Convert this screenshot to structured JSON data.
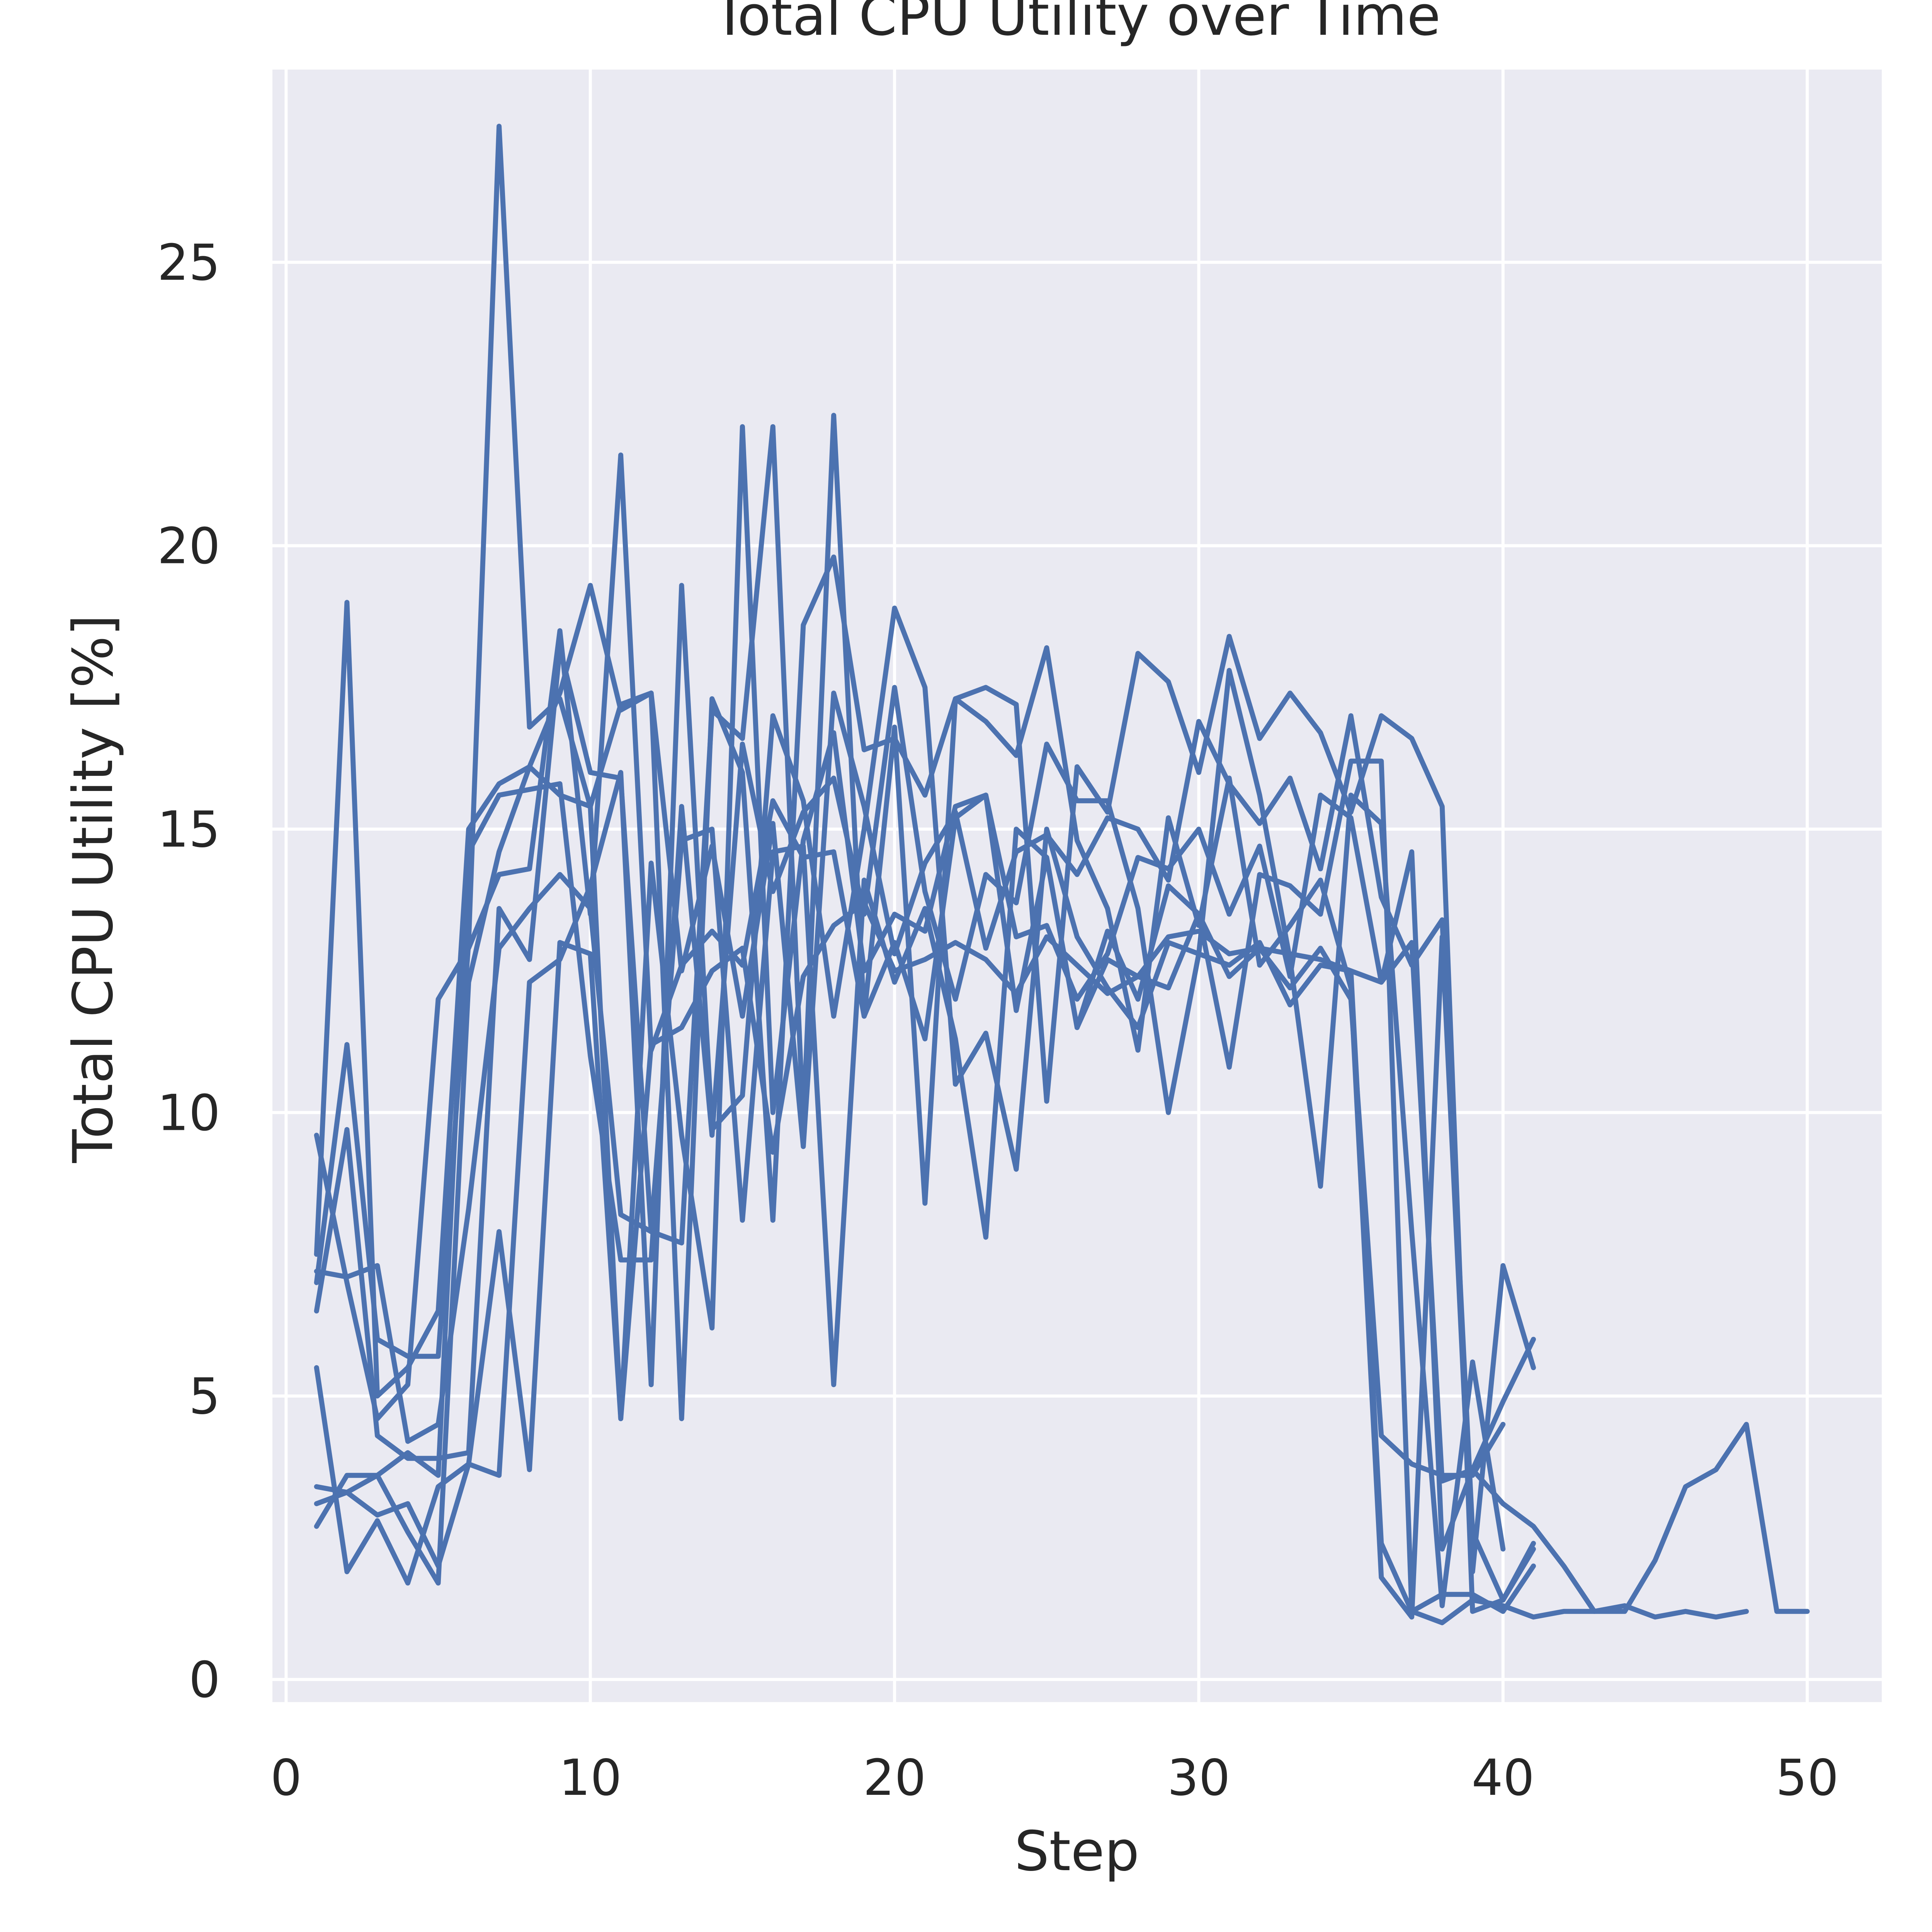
{
  "chart_data": {
    "type": "line",
    "title": "Total CPU Utility over Time",
    "xlabel": "Step",
    "ylabel": "Total CPU Utility [%]",
    "xlim": [
      -0.45,
      52.45
    ],
    "ylim": [
      -0.4,
      28.4
    ],
    "xticks": [
      0,
      10,
      20,
      30,
      40,
      50
    ],
    "yticks": [
      0,
      5,
      10,
      15,
      20,
      25
    ],
    "grid": true,
    "color": "#4c72b0",
    "background": "#eaeaf2",
    "series": [
      {
        "x": [
          1,
          2,
          3,
          4,
          5,
          6,
          7,
          8,
          9,
          10,
          11,
          12,
          13,
          14,
          15,
          16,
          17,
          18,
          19,
          20,
          21,
          22,
          23,
          24,
          25,
          26,
          27,
          28,
          29,
          30,
          31,
          32,
          33,
          34,
          35,
          36,
          37,
          38,
          39,
          40,
          41,
          42,
          43,
          44,
          45,
          46,
          47,
          48,
          49,
          50
        ],
        "y": [
          5.5,
          1.9,
          2.8,
          1.7,
          3.4,
          3.8,
          3.6,
          12.3,
          12.7,
          14.0,
          16.0,
          5.2,
          19.3,
          9.7,
          10.3,
          17.0,
          15.5,
          11.7,
          15.0,
          18.9,
          17.5,
          10.5,
          11.4,
          9.0,
          15.0,
          13.1,
          12.2,
          11.5,
          13.0,
          12.8,
          12.6,
          13.0,
          11.9,
          12.6,
          12.5,
          12.3,
          13.0,
          3.5,
          3.7,
          3.1,
          2.7,
          2.0,
          1.2,
          1.2,
          2.1,
          3.4,
          3.7,
          4.5,
          1.2,
          1.2
        ]
      },
      {
        "x": [
          1,
          2,
          3,
          4,
          5,
          6,
          7,
          8,
          9,
          10,
          11,
          12,
          13,
          14,
          15,
          16,
          17,
          18,
          19,
          20,
          21,
          22,
          23,
          24,
          25,
          26,
          27,
          28,
          29,
          30,
          31,
          32,
          33,
          34,
          35,
          36,
          37,
          38,
          39,
          40,
          41,
          42,
          43,
          44,
          45,
          46,
          47,
          48
        ],
        "y": [
          3.1,
          3.3,
          2.9,
          3.1,
          2.0,
          3.8,
          7.9,
          3.7,
          13.0,
          12.8,
          4.6,
          11.2,
          11.5,
          12.5,
          12.9,
          9.3,
          12.4,
          13.3,
          13.7,
          12.5,
          12.7,
          13.0,
          12.7,
          12.1,
          13.1,
          12.6,
          12.1,
          12.4,
          13.1,
          13.2,
          12.8,
          12.9,
          12.8,
          12.7,
          12.5,
          2.4,
          1.2,
          1.0,
          1.4,
          1.3,
          1.1,
          1.2,
          1.2,
          1.3,
          1.1,
          1.2,
          1.1,
          1.2
        ]
      },
      {
        "x": [
          1,
          2,
          3,
          4,
          5,
          6,
          7,
          8,
          9,
          10,
          11,
          12,
          13,
          14,
          15,
          16,
          17,
          18,
          19,
          20,
          21,
          22,
          23,
          24,
          25,
          26,
          27,
          28,
          29,
          30,
          31,
          32,
          33,
          34,
          35,
          36,
          37,
          38,
          39,
          40,
          41
        ],
        "y": [
          9.6,
          7.0,
          4.6,
          5.2,
          12.0,
          12.9,
          14.2,
          14.3,
          18.5,
          13.5,
          21.6,
          11.1,
          12.6,
          13.2,
          12.6,
          15.5,
          14.5,
          14.6,
          11.7,
          13.0,
          11.3,
          15.2,
          15.6,
          11.8,
          14.5,
          11.5,
          13.2,
          12.0,
          14.0,
          13.5,
          10.8,
          14.2,
          14.0,
          13.5,
          16.2,
          16.2,
          1.2,
          1.5,
          1.5,
          1.2,
          2.0
        ]
      },
      {
        "x": [
          1,
          2,
          3,
          4,
          5,
          6,
          7,
          8,
          9,
          10,
          11,
          12,
          13,
          14,
          15,
          16,
          17,
          18,
          19,
          20,
          21,
          22,
          23,
          24,
          25,
          26,
          27,
          28,
          29,
          30,
          31,
          32,
          33,
          34,
          35,
          36,
          37,
          38,
          39,
          40,
          41
        ],
        "y": [
          7.0,
          11.2,
          6.0,
          5.7,
          5.7,
          13.0,
          27.4,
          16.8,
          17.3,
          15.4,
          17.2,
          17.4,
          4.6,
          17.3,
          16.0,
          8.1,
          18.6,
          19.8,
          16.4,
          16.6,
          15.6,
          17.3,
          17.5,
          17.2,
          10.2,
          16.1,
          15.3,
          18.1,
          17.6,
          16.0,
          18.4,
          16.6,
          17.4,
          16.7,
          15.3,
          17.0,
          16.6,
          15.4,
          1.2,
          1.4,
          2.4
        ]
      },
      {
        "x": [
          1,
          2,
          3,
          4,
          5,
          6,
          7,
          8,
          9,
          10,
          11,
          12,
          13,
          14,
          15,
          16,
          17,
          18,
          19,
          20,
          21,
          22,
          23,
          24,
          25,
          26,
          27,
          28,
          29,
          30,
          31,
          32,
          33,
          34,
          35,
          36,
          37,
          38,
          39,
          40,
          41
        ],
        "y": [
          6.5,
          9.7,
          4.3,
          3.9,
          3.9,
          4.0,
          13.6,
          12.7,
          18.2,
          16.0,
          15.9,
          7.9,
          7.7,
          17.1,
          16.6,
          22.1,
          9.8,
          22.3,
          11.7,
          16.8,
          8.4,
          17.3,
          16.9,
          16.3,
          18.2,
          14.8,
          13.6,
          11.1,
          15.2,
          13.3,
          15.9,
          12.6,
          13.3,
          14.1,
          12.2,
          1.8,
          1.1,
          13.1,
          1.9,
          7.3,
          5.5
        ]
      },
      {
        "x": [
          1,
          2,
          3,
          4,
          5,
          6,
          7,
          8,
          9,
          10,
          11,
          12,
          13,
          14,
          15,
          16,
          17,
          18,
          19,
          20,
          21,
          22,
          23,
          24,
          25,
          26,
          27,
          28,
          29,
          30,
          31,
          32,
          33,
          34,
          35,
          36,
          37,
          38,
          39,
          40,
          41
        ],
        "y": [
          3.4,
          3.3,
          3.6,
          2.6,
          1.7,
          12.3,
          14.6,
          16.1,
          15.6,
          15.4,
          4.6,
          14.4,
          9.6,
          6.2,
          22.1,
          10.0,
          14.8,
          16.7,
          12.5,
          13.5,
          13.2,
          15.4,
          15.6,
          13.1,
          13.3,
          12.0,
          12.8,
          14.5,
          14.3,
          15.0,
          13.5,
          14.7,
          12.4,
          15.6,
          15.2,
          12.3,
          14.6,
          2.3,
          3.7,
          4.9,
          6.0
        ]
      },
      {
        "x": [
          1,
          2,
          3,
          4,
          5,
          6,
          7,
          8,
          9,
          10,
          11,
          12,
          13,
          14,
          15,
          16,
          17,
          18,
          19,
          20,
          21,
          22,
          23,
          24,
          25,
          26,
          27,
          28,
          29,
          30,
          31,
          32,
          33,
          34,
          35,
          36,
          37,
          38,
          39,
          40,
          41
        ],
        "y": [
          7.5,
          19.0,
          5.0,
          5.5,
          6.5,
          15.0,
          15.8,
          16.1,
          17.4,
          19.3,
          17.1,
          17.4,
          12.5,
          14.7,
          11.7,
          15.1,
          9.4,
          17.4,
          15.4,
          12.8,
          14.4,
          15.3,
          12.9,
          14.6,
          14.9,
          14.2,
          15.2,
          15.0,
          14.1,
          16.9,
          15.8,
          15.1,
          15.9,
          14.3,
          17.0,
          13.8,
          12.6,
          13.4,
          2.6,
          1.4,
          2.3
        ]
      },
      {
        "x": [
          1,
          2,
          3,
          4,
          5,
          6,
          7,
          8,
          9,
          10,
          11,
          12,
          13,
          14,
          15,
          16,
          17,
          18,
          19,
          20,
          21,
          22,
          23,
          24,
          25,
          26,
          27,
          28,
          29,
          30,
          31,
          32,
          33,
          34,
          35,
          36,
          37,
          38,
          39,
          40,
          41
        ],
        "y": [
          7.2,
          7.1,
          7.3,
          4.2,
          4.5,
          8.3,
          12.9,
          13.6,
          14.2,
          13.6,
          8.2,
          7.9,
          14.8,
          15.0,
          8.1,
          14.6,
          14.7,
          5.2,
          14.1,
          12.3,
          13.6,
          11.3,
          7.8,
          15.0,
          14.5,
          11.5,
          12.7,
          12.4,
          12.2,
          13.5,
          12.4,
          12.9,
          12.2,
          12.9,
          12.0,
          4.3,
          3.8,
          3.6,
          3.6,
          4.5,
          null
        ]
      },
      {
        "x": [
          1,
          2,
          3,
          4,
          5,
          6,
          7,
          8,
          9,
          10,
          11,
          12,
          13,
          14,
          15,
          16,
          17,
          18,
          19,
          20,
          21,
          22,
          23,
          24,
          25,
          26,
          27,
          28,
          29,
          30,
          31,
          32,
          33,
          34,
          35,
          36,
          37,
          38,
          39,
          40,
          41
        ],
        "y": [
          2.7,
          3.6,
          3.6,
          4.0,
          3.6,
          14.6,
          15.6,
          15.7,
          15.8,
          11.0,
          7.4,
          7.4,
          15.4,
          9.6,
          16.5,
          13.9,
          15.3,
          15.9,
          13.5,
          17.5,
          13.9,
          12.0,
          14.2,
          13.7,
          16.5,
          15.5,
          15.5,
          13.6,
          10.0,
          12.8,
          17.8,
          15.6,
          12.7,
          8.7,
          15.6,
          15.1,
          7.9,
          1.3,
          5.6,
          2.3,
          null
        ]
      }
    ]
  }
}
